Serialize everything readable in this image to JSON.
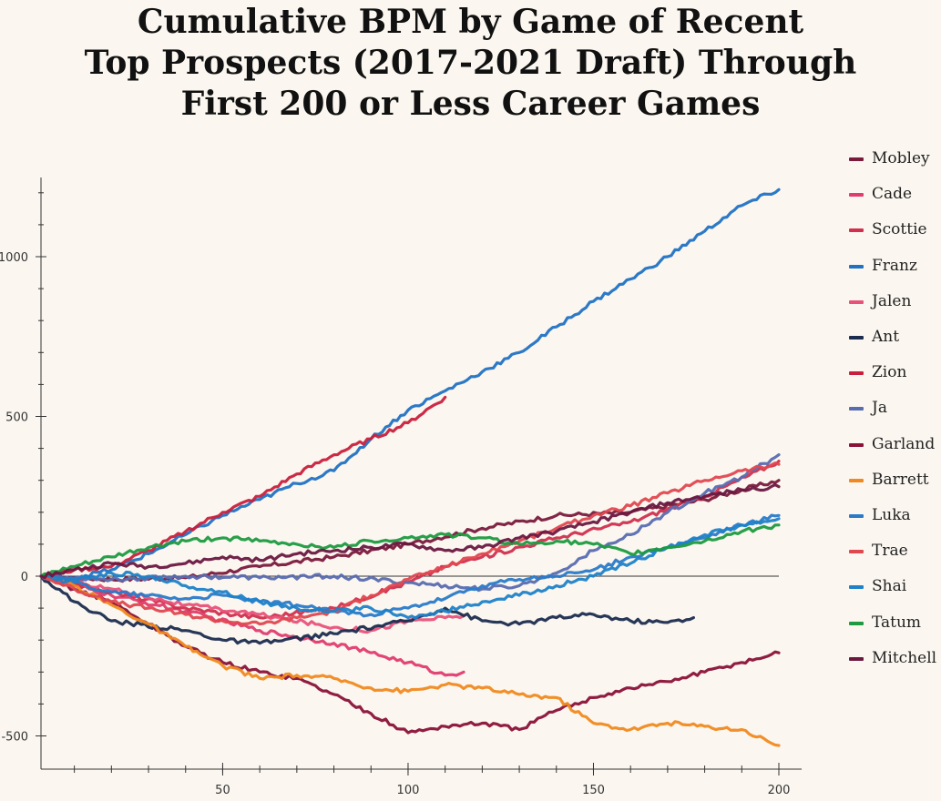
{
  "title_lines": [
    "Cumulative BPM by Game of Recent",
    "Top Prospects (2017-2021 Draft) Through",
    "First 200 or Less Career Games"
  ],
  "chart_data": {
    "type": "line",
    "title": "Cumulative BPM by Game of Recent Top Prospects (2017-2021 Draft) Through First 200 or Less Career Games",
    "xlabel": "",
    "ylabel": "",
    "xlim": [
      1,
      200
    ],
    "ylim": [
      -540,
      1240
    ],
    "x_ticks": [
      50,
      100,
      150,
      200
    ],
    "y_ticks": [
      -500,
      0,
      500,
      1000
    ],
    "y_tick_labels": [
      "-500",
      "0",
      "500",
      "1000"
    ],
    "grid": false,
    "zero_line": true,
    "legend_position": "right",
    "series": [
      {
        "name": "Mobley",
        "color": "#7a1a3c",
        "points": [
          [
            1,
            0
          ],
          [
            20,
            -10
          ],
          [
            40,
            -5
          ],
          [
            60,
            30
          ],
          [
            80,
            60
          ],
          [
            100,
            100
          ],
          [
            120,
            150
          ],
          [
            140,
            190
          ],
          [
            160,
            200
          ],
          [
            180,
            240
          ],
          [
            200,
            300
          ]
        ]
      },
      {
        "name": "Cade",
        "color": "#e03c6e",
        "points": [
          [
            1,
            0
          ],
          [
            20,
            -60
          ],
          [
            40,
            -110
          ],
          [
            60,
            -170
          ],
          [
            80,
            -210
          ],
          [
            90,
            -240
          ],
          [
            100,
            -270
          ],
          [
            110,
            -310
          ],
          [
            115,
            -300
          ]
        ]
      },
      {
        "name": "Scottie",
        "color": "#d0304e",
        "points": [
          [
            1,
            0
          ],
          [
            20,
            -50
          ],
          [
            40,
            -100
          ],
          [
            60,
            -130
          ],
          [
            80,
            -100
          ],
          [
            100,
            -20
          ],
          [
            110,
            30
          ],
          [
            120,
            60
          ],
          [
            140,
            120
          ],
          [
            160,
            170
          ],
          [
            180,
            250
          ],
          [
            200,
            360
          ]
        ]
      },
      {
        "name": "Franz",
        "color": "#2272c3",
        "points": [
          [
            1,
            0
          ],
          [
            10,
            -5
          ],
          [
            20,
            20
          ],
          [
            30,
            70
          ],
          [
            40,
            130
          ],
          [
            50,
            190
          ],
          [
            60,
            240
          ],
          [
            70,
            290
          ],
          [
            80,
            330
          ],
          [
            90,
            430
          ],
          [
            100,
            520
          ],
          [
            110,
            580
          ],
          [
            120,
            640
          ],
          [
            130,
            700
          ],
          [
            140,
            780
          ],
          [
            150,
            860
          ],
          [
            160,
            930
          ],
          [
            170,
            1000
          ],
          [
            180,
            1080
          ],
          [
            190,
            1160
          ],
          [
            200,
            1210
          ]
        ]
      },
      {
        "name": "Jalen",
        "color": "#e8527a",
        "points": [
          [
            1,
            0
          ],
          [
            20,
            -40
          ],
          [
            40,
            -90
          ],
          [
            60,
            -120
          ],
          [
            80,
            -160
          ],
          [
            90,
            -170
          ],
          [
            100,
            -140
          ],
          [
            110,
            -130
          ],
          [
            115,
            -125
          ]
        ]
      },
      {
        "name": "Ant",
        "color": "#1c2c4e",
        "points": [
          [
            1,
            0
          ],
          [
            10,
            -80
          ],
          [
            20,
            -140
          ],
          [
            40,
            -170
          ],
          [
            50,
            -200
          ],
          [
            60,
            -210
          ],
          [
            80,
            -180
          ],
          [
            100,
            -140
          ],
          [
            110,
            -100
          ],
          [
            120,
            -140
          ],
          [
            130,
            -150
          ],
          [
            140,
            -130
          ],
          [
            150,
            -120
          ],
          [
            160,
            -140
          ],
          [
            170,
            -145
          ],
          [
            177,
            -130
          ]
        ]
      },
      {
        "name": "Zion",
        "color": "#c8203c",
        "points": [
          [
            1,
            0
          ],
          [
            10,
            20
          ],
          [
            20,
            30
          ],
          [
            30,
            80
          ],
          [
            40,
            140
          ],
          [
            50,
            200
          ],
          [
            60,
            250
          ],
          [
            70,
            320
          ],
          [
            80,
            380
          ],
          [
            90,
            430
          ],
          [
            100,
            480
          ],
          [
            110,
            560
          ]
        ]
      },
      {
        "name": "Ja",
        "color": "#5a6cb0",
        "points": [
          [
            1,
            0
          ],
          [
            20,
            -10
          ],
          [
            40,
            0
          ],
          [
            60,
            -5
          ],
          [
            80,
            0
          ],
          [
            100,
            -20
          ],
          [
            120,
            -40
          ],
          [
            130,
            -30
          ],
          [
            140,
            10
          ],
          [
            150,
            80
          ],
          [
            160,
            130
          ],
          [
            170,
            200
          ],
          [
            180,
            260
          ],
          [
            190,
            310
          ],
          [
            200,
            380
          ]
        ]
      },
      {
        "name": "Garland",
        "color": "#8a1238",
        "points": [
          [
            1,
            0
          ],
          [
            10,
            -40
          ],
          [
            20,
            -80
          ],
          [
            30,
            -150
          ],
          [
            40,
            -220
          ],
          [
            50,
            -270
          ],
          [
            60,
            -300
          ],
          [
            70,
            -320
          ],
          [
            80,
            -370
          ],
          [
            90,
            -430
          ],
          [
            100,
            -490
          ],
          [
            110,
            -470
          ],
          [
            120,
            -460
          ],
          [
            130,
            -480
          ],
          [
            140,
            -420
          ],
          [
            150,
            -380
          ],
          [
            160,
            -350
          ],
          [
            170,
            -330
          ],
          [
            180,
            -300
          ],
          [
            190,
            -270
          ],
          [
            200,
            -240
          ]
        ]
      },
      {
        "name": "Barrett",
        "color": "#f08a20",
        "points": [
          [
            1,
            0
          ],
          [
            10,
            -30
          ],
          [
            20,
            -90
          ],
          [
            30,
            -150
          ],
          [
            40,
            -220
          ],
          [
            50,
            -280
          ],
          [
            60,
            -320
          ],
          [
            70,
            -310
          ],
          [
            80,
            -320
          ],
          [
            90,
            -350
          ],
          [
            100,
            -360
          ],
          [
            110,
            -340
          ],
          [
            120,
            -350
          ],
          [
            130,
            -370
          ],
          [
            140,
            -380
          ],
          [
            150,
            -460
          ],
          [
            160,
            -480
          ],
          [
            170,
            -460
          ],
          [
            180,
            -470
          ],
          [
            190,
            -480
          ],
          [
            200,
            -530
          ]
        ]
      },
      {
        "name": "Luka",
        "color": "#2a7ac8",
        "points": [
          [
            1,
            0
          ],
          [
            10,
            -20
          ],
          [
            20,
            -50
          ],
          [
            30,
            -60
          ],
          [
            40,
            -70
          ],
          [
            50,
            -60
          ],
          [
            60,
            -80
          ],
          [
            70,
            -90
          ],
          [
            80,
            -110
          ],
          [
            90,
            -120
          ],
          [
            100,
            -100
          ],
          [
            110,
            -70
          ],
          [
            120,
            -30
          ],
          [
            130,
            -10
          ],
          [
            140,
            0
          ],
          [
            150,
            20
          ],
          [
            160,
            60
          ],
          [
            170,
            90
          ],
          [
            180,
            120
          ],
          [
            190,
            160
          ],
          [
            200,
            190
          ]
        ]
      },
      {
        "name": "Trae",
        "color": "#e04850",
        "points": [
          [
            1,
            0
          ],
          [
            10,
            -40
          ],
          [
            20,
            -80
          ],
          [
            30,
            -100
          ],
          [
            40,
            -120
          ],
          [
            50,
            -140
          ],
          [
            60,
            -150
          ],
          [
            70,
            -130
          ],
          [
            80,
            -110
          ],
          [
            90,
            -60
          ],
          [
            100,
            -10
          ],
          [
            110,
            30
          ],
          [
            120,
            70
          ],
          [
            130,
            110
          ],
          [
            140,
            150
          ],
          [
            150,
            190
          ],
          [
            160,
            220
          ],
          [
            170,
            260
          ],
          [
            180,
            300
          ],
          [
            190,
            330
          ],
          [
            200,
            350
          ]
        ]
      },
      {
        "name": "Shai",
        "color": "#1f82c8",
        "points": [
          [
            1,
            0
          ],
          [
            10,
            -10
          ],
          [
            20,
            10
          ],
          [
            30,
            0
          ],
          [
            40,
            -30
          ],
          [
            50,
            -50
          ],
          [
            60,
            -80
          ],
          [
            70,
            -100
          ],
          [
            80,
            -110
          ],
          [
            90,
            -100
          ],
          [
            100,
            -130
          ],
          [
            110,
            -110
          ],
          [
            120,
            -80
          ],
          [
            130,
            -60
          ],
          [
            140,
            -30
          ],
          [
            150,
            0
          ],
          [
            160,
            40
          ],
          [
            170,
            90
          ],
          [
            180,
            130
          ],
          [
            190,
            160
          ],
          [
            200,
            180
          ]
        ]
      },
      {
        "name": "Tatum",
        "color": "#1e9a40",
        "points": [
          [
            1,
            0
          ],
          [
            10,
            30
          ],
          [
            20,
            60
          ],
          [
            30,
            90
          ],
          [
            40,
            110
          ],
          [
            50,
            120
          ],
          [
            60,
            110
          ],
          [
            70,
            100
          ],
          [
            80,
            90
          ],
          [
            90,
            110
          ],
          [
            100,
            120
          ],
          [
            110,
            130
          ],
          [
            120,
            120
          ],
          [
            130,
            100
          ],
          [
            140,
            110
          ],
          [
            150,
            100
          ],
          [
            160,
            70
          ],
          [
            170,
            90
          ],
          [
            180,
            110
          ],
          [
            190,
            140
          ],
          [
            200,
            160
          ]
        ]
      },
      {
        "name": "Mitchell",
        "color": "#6a1840",
        "points": [
          [
            1,
            0
          ],
          [
            10,
            20
          ],
          [
            20,
            40
          ],
          [
            30,
            30
          ],
          [
            40,
            40
          ],
          [
            50,
            60
          ],
          [
            60,
            50
          ],
          [
            70,
            70
          ],
          [
            80,
            80
          ],
          [
            90,
            90
          ],
          [
            100,
            100
          ],
          [
            110,
            80
          ],
          [
            120,
            90
          ],
          [
            130,
            120
          ],
          [
            140,
            140
          ],
          [
            150,
            170
          ],
          [
            160,
            200
          ],
          [
            170,
            230
          ],
          [
            180,
            250
          ],
          [
            190,
            270
          ],
          [
            200,
            280
          ]
        ]
      }
    ]
  }
}
